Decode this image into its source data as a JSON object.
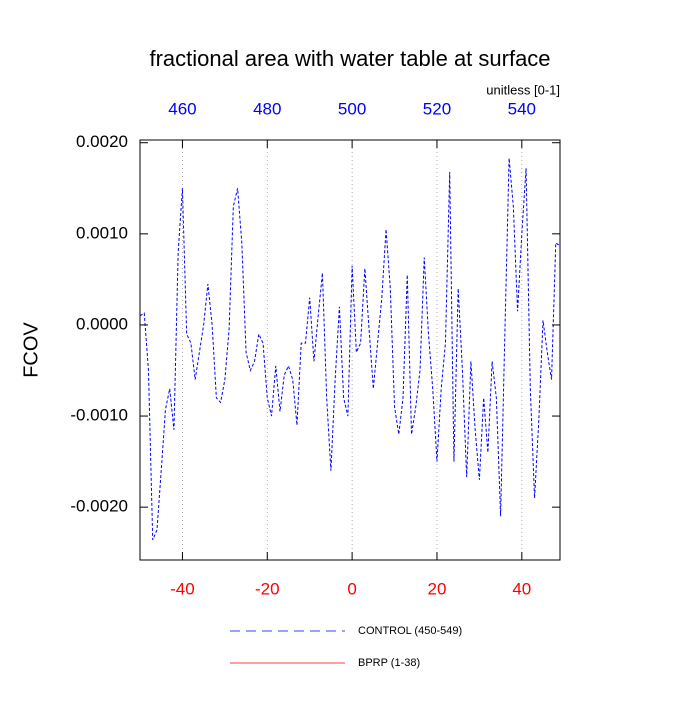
{
  "chart_data": {
    "type": "line",
    "title": "fractional area with water table at surface",
    "units_label": "unitless [0-1]",
    "y_label": "FCOV",
    "x": [
      -50,
      -49,
      -48,
      -47,
      -46,
      -45,
      -44,
      -43,
      -42,
      -41,
      -40,
      -39,
      -38,
      -37,
      -36,
      -35,
      -34,
      -33,
      -32,
      -31,
      -30,
      -29,
      -28,
      -27,
      -26,
      -25,
      -24,
      -23,
      -22,
      -21,
      -20,
      -19,
      -18,
      -17,
      -16,
      -15,
      -14,
      -13,
      -12,
      -11,
      -10,
      -9,
      -8,
      -7,
      -6,
      -5,
      -4,
      -3,
      -2,
      -1,
      0,
      1,
      2,
      3,
      4,
      5,
      6,
      7,
      8,
      9,
      10,
      11,
      12,
      13,
      14,
      15,
      16,
      17,
      18,
      19,
      20,
      21,
      22,
      23,
      24,
      25,
      26,
      27,
      28,
      29,
      30,
      31,
      32,
      33,
      34,
      35,
      36,
      37,
      38,
      39,
      40,
      41,
      42,
      43,
      44,
      45,
      46,
      47,
      48,
      49
    ],
    "series": [
      {
        "name": "CONTROL (450-549)",
        "color": "#0000ff",
        "dash": true,
        "values": [
          0.0001,
          0.00013,
          -0.0005,
          -0.00236,
          -0.00225,
          -0.0016,
          -0.00093,
          -0.0007,
          -0.00115,
          0.0008,
          0.0015,
          -0.0001,
          -0.0002,
          -0.0006,
          -0.0003,
          0.0,
          0.00045,
          0.0,
          -0.0008,
          -0.00085,
          -0.0006,
          -5e-05,
          0.0013,
          0.0015,
          0.0009,
          -0.0003,
          -0.0005,
          -0.0004,
          -0.0001,
          -0.0002,
          -0.0008,
          -0.001,
          -0.00045,
          -0.00095,
          -0.00055,
          -0.00045,
          -0.0006,
          -0.0011,
          -0.0002,
          -0.0002,
          0.0003,
          -0.0004,
          0.0001,
          0.00057,
          -0.0008,
          -0.0016,
          -0.0006,
          0.0002,
          -0.0008,
          -0.001,
          0.00065,
          -0.0003,
          -0.0002,
          0.00062,
          -5e-05,
          -0.0007,
          -0.0002,
          0.0003,
          0.00105,
          0.0004,
          -0.0009,
          -0.0012,
          -0.0008,
          0.00055,
          -0.0012,
          -0.0009,
          -0.0005,
          0.00074,
          -0.0001,
          -0.0007,
          -0.0015,
          -0.0007,
          -0.0002,
          0.00168,
          -0.0015,
          0.0004,
          -0.0005,
          -0.00167,
          -0.0004,
          -0.00115,
          -0.0017,
          -0.0008,
          -0.0014,
          -0.0004,
          -0.0008,
          -0.0021,
          -0.0001,
          0.00183,
          0.0013,
          0.00015,
          0.001,
          0.00172,
          -0.0007,
          -0.0019,
          -0.00105,
          5e-05,
          -0.0003,
          -0.0006,
          0.0009,
          0.00087
        ]
      },
      {
        "name": "BPRP (1-38)",
        "color": "#ff0000",
        "dash": false,
        "values": [
          null,
          null,
          null,
          null,
          null,
          null,
          null,
          null,
          null,
          null,
          null,
          null,
          null,
          null,
          null,
          null,
          null,
          null,
          null,
          null,
          null,
          null,
          null,
          null,
          null,
          null,
          null,
          null,
          null,
          null,
          null,
          null,
          null,
          null,
          null,
          null,
          null,
          null,
          null,
          null,
          null,
          null,
          null,
          null,
          null,
          null,
          null,
          null,
          null,
          null,
          null,
          null,
          null,
          null,
          null,
          null,
          null,
          null,
          null,
          null,
          null,
          null,
          null,
          null,
          null,
          null,
          null,
          null,
          null,
          null,
          null,
          null,
          null,
          null,
          null,
          null,
          null,
          null,
          null,
          null,
          null,
          null,
          null,
          null,
          null,
          null,
          null,
          null,
          null,
          null,
          null,
          null,
          null,
          null,
          null,
          null,
          null,
          null,
          null,
          null
        ]
      }
    ],
    "xlim": [
      -50,
      49
    ],
    "xticks": [
      -40,
      -20,
      0,
      20,
      40
    ],
    "xtick_color": "#ff0000",
    "xgrid": true,
    "x2lim": [
      450,
      549
    ],
    "x2ticks": [
      460,
      480,
      500,
      520,
      540
    ],
    "x2tick_color": "#0000ff",
    "ylim": [
      -0.00258,
      0.00203
    ],
    "yticks": [
      {
        "value": 0.002,
        "label": "0.0020"
      },
      {
        "value": 0.001,
        "label": "0.0010"
      },
      {
        "value": 0,
        "label": "0.0000"
      },
      {
        "value": -0.001,
        "label": "-0.0010"
      },
      {
        "value": -0.002,
        "label": "-0.0020"
      }
    ]
  }
}
